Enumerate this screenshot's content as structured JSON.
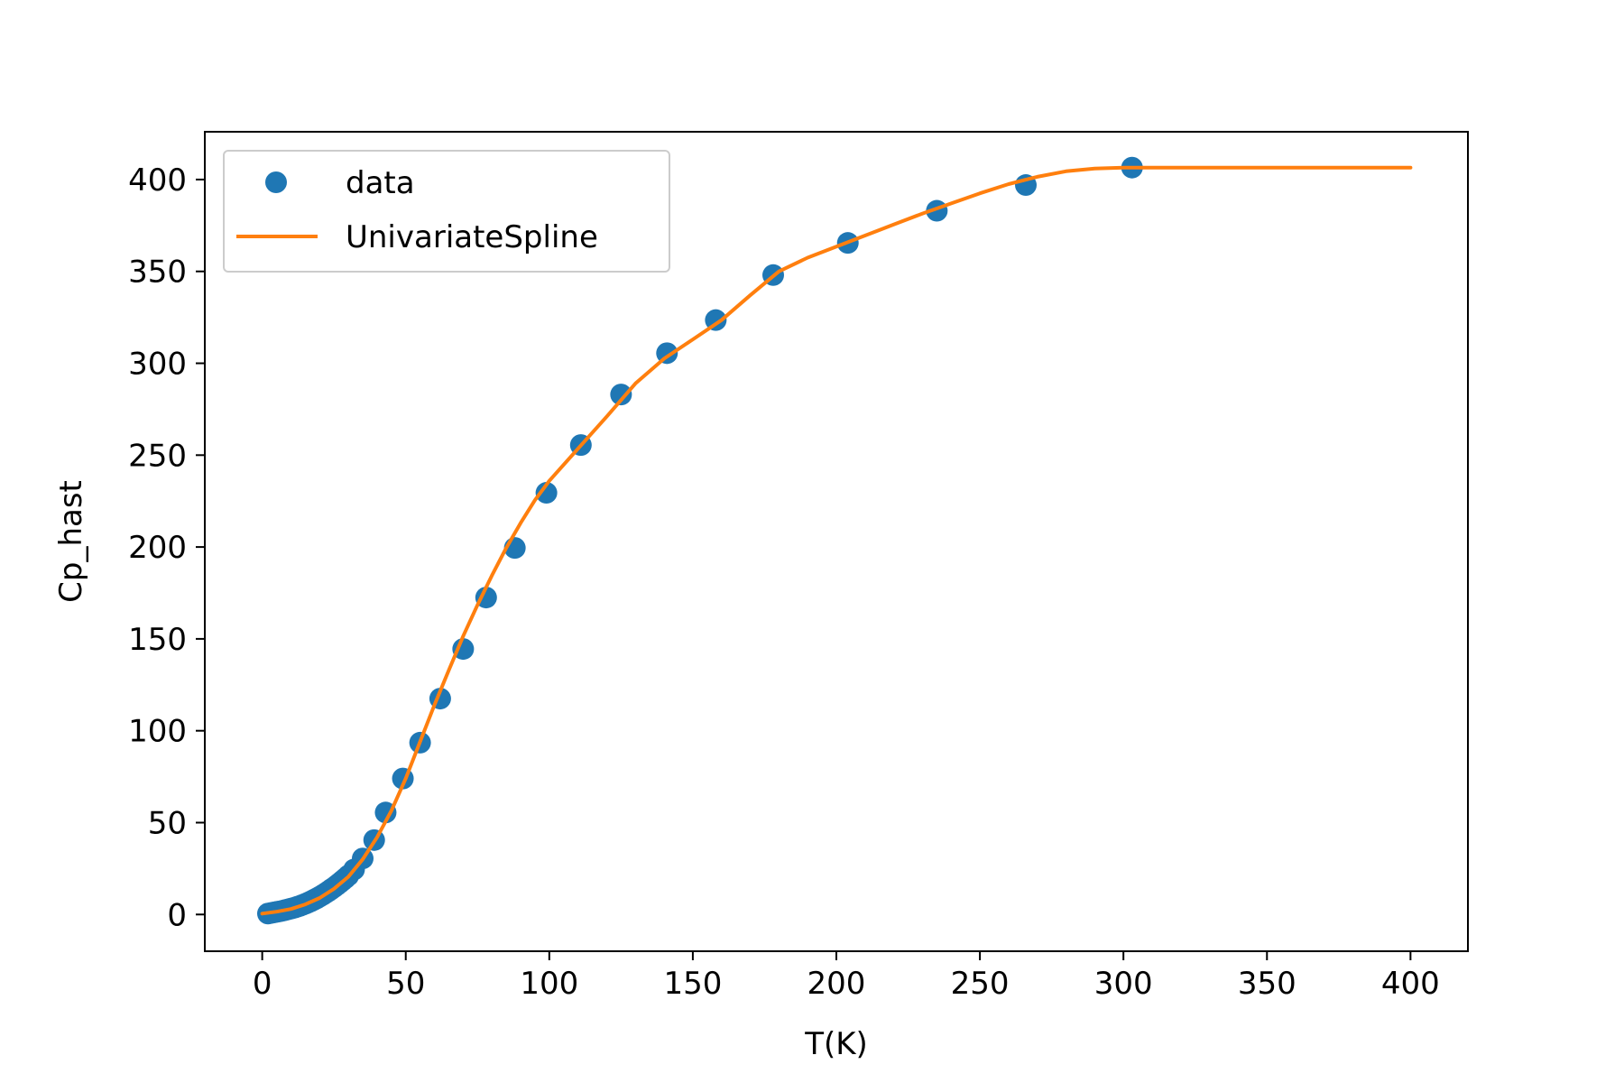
{
  "chart_data": {
    "type": "line",
    "title": "",
    "xlabel": "T(K)",
    "ylabel": "Cp_hast",
    "xlim": [
      -20,
      420
    ],
    "ylim": [
      -20,
      426
    ],
    "xticks": [
      0,
      50,
      100,
      150,
      200,
      250,
      300,
      350,
      400
    ],
    "yticks": [
      0,
      50,
      100,
      150,
      200,
      250,
      300,
      350,
      400
    ],
    "grid": false,
    "legend_position": "upper left",
    "legend": [
      {
        "label": "data",
        "marker": "circle",
        "color": "#1f77b4"
      },
      {
        "label": "UnivariateSpline",
        "marker": "line",
        "color": "#ff7f0e"
      }
    ],
    "series": [
      {
        "name": "data",
        "kind": "scatter",
        "color": "#1f77b4",
        "x": [
          2,
          3,
          4,
          5,
          6,
          7,
          8,
          9,
          10,
          11,
          12,
          13,
          14,
          15,
          16,
          17,
          18,
          19,
          20,
          21,
          22,
          23,
          24,
          25,
          26,
          27,
          28,
          29,
          30,
          32,
          35,
          39,
          43,
          49,
          55,
          62,
          70,
          78,
          88,
          99,
          111,
          125,
          141,
          158,
          178,
          204,
          235,
          266,
          303
        ],
        "y": [
          0.5,
          0.8,
          1.1,
          1.4,
          1.7,
          2.0,
          2.4,
          2.8,
          3.2,
          3.6,
          4.1,
          4.6,
          5.2,
          5.8,
          6.5,
          7.2,
          8.0,
          8.8,
          9.7,
          10.6,
          11.6,
          12.6,
          13.7,
          14.8,
          16.0,
          17.2,
          18.5,
          19.8,
          21.2,
          24.5,
          30.5,
          40.5,
          55.5,
          74.0,
          93.5,
          117.5,
          144.5,
          172.5,
          199.5,
          229.5,
          255.5,
          283.0,
          305.5,
          323.5,
          348.0,
          365.5,
          383.0,
          397.0,
          406.5
        ]
      },
      {
        "name": "UnivariateSpline",
        "kind": "line",
        "color": "#ff7f0e",
        "x": [
          0,
          5,
          10,
          15,
          20,
          25,
          30,
          35,
          40,
          45,
          50,
          55,
          60,
          65,
          70,
          75,
          80,
          85,
          90,
          95,
          100,
          110,
          120,
          130,
          140,
          150,
          160,
          170,
          180,
          190,
          200,
          210,
          220,
          230,
          240,
          250,
          260,
          270,
          280,
          290,
          300,
          310,
          320,
          340,
          360,
          380,
          400
        ],
        "y": [
          0.5,
          1.5,
          3.0,
          5.5,
          9.0,
          14.0,
          20.5,
          30.0,
          42.0,
          56.5,
          74.0,
          94.0,
          114.0,
          133.0,
          151.5,
          168.5,
          184.5,
          199.5,
          213.0,
          225.5,
          236.0,
          253.5,
          271.0,
          289.0,
          302.5,
          313.0,
          323.5,
          337.0,
          350.0,
          357.5,
          363.5,
          369.5,
          375.5,
          381.5,
          387.0,
          392.5,
          397.5,
          401.5,
          404.5,
          406.0,
          406.5,
          406.5,
          406.5,
          406.5,
          406.5,
          406.5,
          406.5
        ]
      }
    ]
  }
}
